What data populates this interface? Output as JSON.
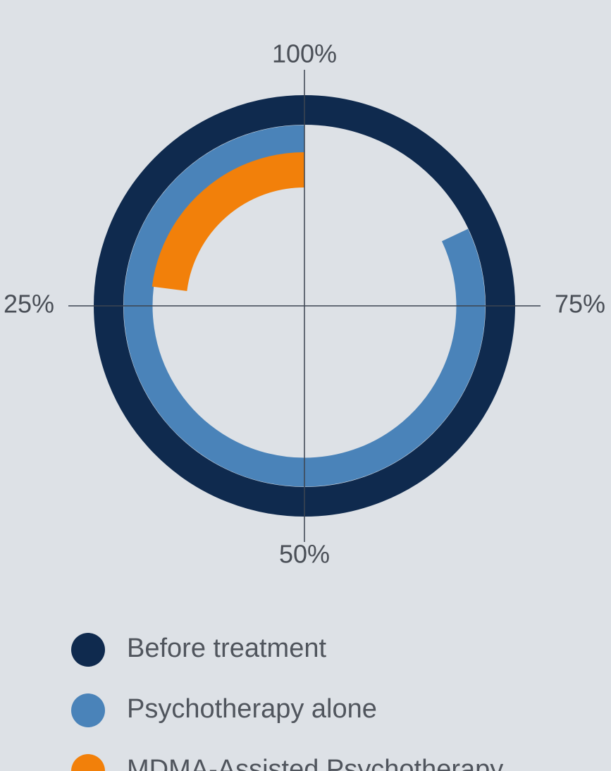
{
  "chart_data": {
    "type": "radial_bar",
    "ticks": [
      {
        "value": 100,
        "label": "100%"
      },
      {
        "value": 75,
        "label": "75%"
      },
      {
        "value": 50,
        "label": "50%"
      },
      {
        "value": 25,
        "label": "25%"
      }
    ],
    "series": [
      {
        "name": "Before treatment",
        "color": "#0f2a4e",
        "values": [
          100
        ]
      },
      {
        "name": "Psychotherapy alone",
        "color": "#4a83b9",
        "values": [
          82
        ]
      },
      {
        "name": "MDMA-Assisted Psychotherapy",
        "color": "#f2800a",
        "values": [
          23
        ]
      }
    ]
  }
}
